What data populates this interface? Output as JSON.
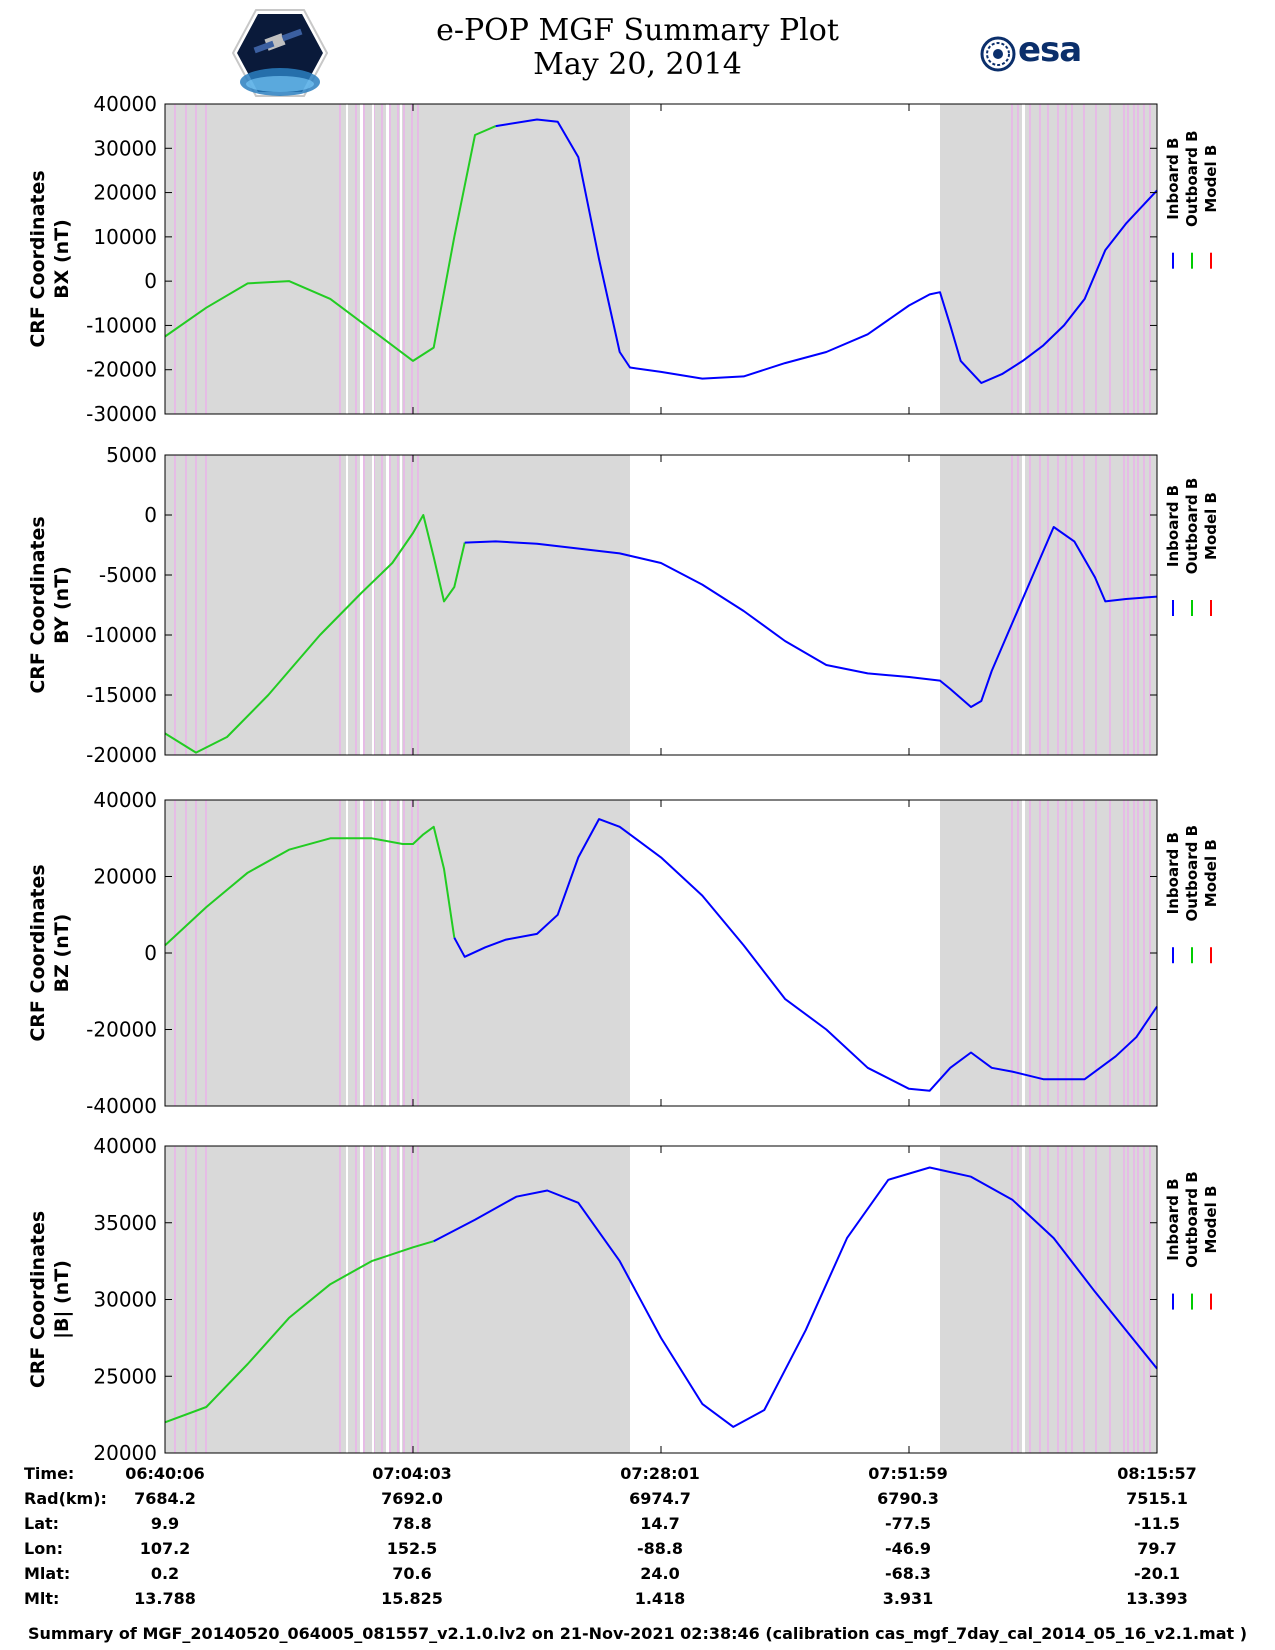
{
  "title": {
    "line1": "e-POP MGF Summary Plot",
    "line2": "May 20, 2014"
  },
  "logos": {
    "left": "epop-mission-logo",
    "right_text": "esa"
  },
  "legend": {
    "entries": [
      {
        "name": "Inboard B",
        "color": "#0000ff"
      },
      {
        "name": "Outboard B",
        "color": "#00cc00"
      },
      {
        "name": "Model B",
        "color": "#ff0000"
      }
    ]
  },
  "colors": {
    "inboard": "#0000ff",
    "outboard": "#22cc22",
    "model": "#ff0000",
    "eclipse_shading": "#d9d9d9",
    "flag_lines": "#f0a8f0"
  },
  "chart_data": [
    {
      "type": "line",
      "ylabel_line1": "CRF Coordinates",
      "ylabel_line2": "BX (nT)",
      "ylim": [
        -30000,
        40000
      ],
      "yticks": [
        -30000,
        -20000,
        -10000,
        0,
        10000,
        20000,
        30000,
        40000
      ],
      "xlim": [
        0,
        96
      ],
      "xticks": [
        0,
        24,
        48,
        72,
        96
      ],
      "grid": false,
      "legend_placement": "right",
      "shaded_intervals": [
        [
          0,
          45
        ],
        [
          75,
          96
        ]
      ],
      "series": [
        {
          "name": "Outboard B",
          "x": [
            0,
            4,
            8,
            12,
            16,
            20,
            24,
            26,
            28,
            30,
            32
          ],
          "y": [
            -12500,
            -6000,
            -500,
            0,
            -4000,
            -11000,
            -18000,
            -15000,
            10000,
            33000,
            35000
          ]
        },
        {
          "name": "Inboard B",
          "x": [
            32,
            36,
            38,
            40,
            42,
            44,
            45,
            48,
            52,
            56,
            60,
            64,
            68,
            72,
            74,
            75,
            76,
            77,
            79,
            81,
            83,
            85,
            87,
            89,
            91,
            93,
            96
          ],
          "y": [
            35000,
            36500,
            36000,
            28000,
            5000,
            -16000,
            -19500,
            -20500,
            -22000,
            -21500,
            -18500,
            -16000,
            -12000,
            -5500,
            -3000,
            -2500,
            -10000,
            -18000,
            -23000,
            -21000,
            -18000,
            -14500,
            -10000,
            -4000,
            7000,
            13000,
            20500
          ]
        }
      ]
    },
    {
      "type": "line",
      "ylabel_line1": "CRF Coordinates",
      "ylabel_line2": "BY (nT)",
      "ylim": [
        -20000,
        5000
      ],
      "yticks": [
        -20000,
        -15000,
        -10000,
        -5000,
        0,
        5000
      ],
      "xlim": [
        0,
        96
      ],
      "xticks": [
        0,
        24,
        48,
        72,
        96
      ],
      "grid": false,
      "legend_placement": "right",
      "shaded_intervals": [
        [
          0,
          45
        ],
        [
          75,
          96
        ]
      ],
      "series": [
        {
          "name": "Outboard B",
          "x": [
            0,
            3,
            6,
            10,
            15,
            19,
            22,
            24,
            25,
            26,
            27,
            28,
            29
          ],
          "y": [
            -18200,
            -19800,
            -18500,
            -15000,
            -10000,
            -6500,
            -4000,
            -1500,
            0,
            -3500,
            -7200,
            -6000,
            -2300
          ]
        },
        {
          "name": "Inboard B",
          "x": [
            29,
            32,
            36,
            44,
            48,
            52,
            56,
            60,
            64,
            68,
            72,
            75,
            76,
            78,
            79,
            80,
            81,
            82,
            84,
            86,
            88,
            90,
            91,
            93,
            96
          ],
          "y": [
            -2300,
            -2200,
            -2400,
            -3200,
            -4000,
            -5800,
            -8000,
            -10500,
            -12500,
            -13200,
            -13500,
            -13800,
            -14500,
            -16000,
            -15500,
            -13000,
            -11000,
            -9000,
            -5000,
            -1000,
            -2200,
            -5200,
            -7200,
            -7000,
            -6800
          ]
        }
      ]
    },
    {
      "type": "line",
      "ylabel_line1": "CRF Coordinates",
      "ylabel_line2": "BZ (nT)",
      "ylim": [
        -40000,
        40000
      ],
      "yticks": [
        -40000,
        -20000,
        0,
        20000,
        40000
      ],
      "xlim": [
        0,
        96
      ],
      "xticks": [
        0,
        24,
        48,
        72,
        96
      ],
      "grid": false,
      "legend_placement": "right",
      "shaded_intervals": [
        [
          0,
          45
        ],
        [
          75,
          96
        ]
      ],
      "series": [
        {
          "name": "Outboard B",
          "x": [
            0,
            4,
            8,
            12,
            16,
            20,
            23,
            24,
            25,
            26,
            27,
            28
          ],
          "y": [
            2000,
            12000,
            21000,
            27000,
            30000,
            30000,
            28500,
            28500,
            31000,
            33000,
            22000,
            4000
          ]
        },
        {
          "name": "Inboard B",
          "x": [
            28,
            29,
            31,
            33,
            36,
            38,
            40,
            42,
            44,
            46,
            48,
            52,
            56,
            60,
            64,
            68,
            72,
            74,
            76,
            78,
            80,
            82,
            85,
            89,
            92,
            94,
            96
          ],
          "y": [
            4000,
            -1000,
            1500,
            3500,
            5000,
            10000,
            25000,
            35000,
            33000,
            29000,
            25000,
            15000,
            2000,
            -12000,
            -20000,
            -30000,
            -35500,
            -36000,
            -30000,
            -26000,
            -30000,
            -31000,
            -33000,
            -33000,
            -27000,
            -22000,
            -14000
          ]
        }
      ]
    },
    {
      "type": "line",
      "ylabel_line1": "CRF Coordinates",
      "ylabel_line2": "|B| (nT)",
      "ylim": [
        20000,
        40000
      ],
      "yticks": [
        20000,
        25000,
        30000,
        35000,
        40000
      ],
      "xlim": [
        0,
        96
      ],
      "xticks": [
        0,
        24,
        48,
        72,
        96
      ],
      "grid": false,
      "legend_placement": "right",
      "shaded_intervals": [
        [
          0,
          45
        ],
        [
          75,
          96
        ]
      ],
      "series": [
        {
          "name": "Outboard B",
          "x": [
            0,
            4,
            8,
            12,
            16,
            20,
            24,
            26
          ],
          "y": [
            22000,
            23000,
            25800,
            28800,
            31000,
            32500,
            33400,
            33800
          ]
        },
        {
          "name": "Inboard B",
          "x": [
            26,
            30,
            34,
            37,
            40,
            44,
            48,
            52,
            55,
            58,
            62,
            66,
            70,
            74,
            78,
            82,
            86,
            90,
            93,
            96
          ],
          "y": [
            33800,
            35200,
            36700,
            37100,
            36300,
            32500,
            27500,
            23200,
            21700,
            22800,
            28000,
            34000,
            37800,
            38600,
            38000,
            36500,
            34000,
            30500,
            28000,
            25500
          ]
        }
      ]
    }
  ],
  "info_table": {
    "rows": [
      {
        "label": "Time:",
        "values": [
          "06:40:06",
          "07:04:03",
          "07:28:01",
          "07:51:59",
          "08:15:57"
        ]
      },
      {
        "label": "Rad(km):",
        "values": [
          "7684.2",
          "7692.0",
          "6974.7",
          "6790.3",
          "7515.1"
        ]
      },
      {
        "label": "Lat:",
        "values": [
          "9.9",
          "78.8",
          "14.7",
          "-77.5",
          "-11.5"
        ]
      },
      {
        "label": "Lon:",
        "values": [
          "107.2",
          "152.5",
          "-88.8",
          "-46.9",
          "79.7"
        ]
      },
      {
        "label": "Mlat:",
        "values": [
          "0.2",
          "70.6",
          "24.0",
          "-68.3",
          "-20.1"
        ]
      },
      {
        "label": "Mlt:",
        "values": [
          "13.788",
          "15.825",
          "1.418",
          "3.931",
          "13.393"
        ]
      }
    ]
  },
  "footer": "Summary of MGF_20140520_064005_081557_v2.1.0.lv2 on 21-Nov-2021 02:38:46 (calibration cas_mgf_7day_cal_2014_05_16_v2.1.mat )"
}
